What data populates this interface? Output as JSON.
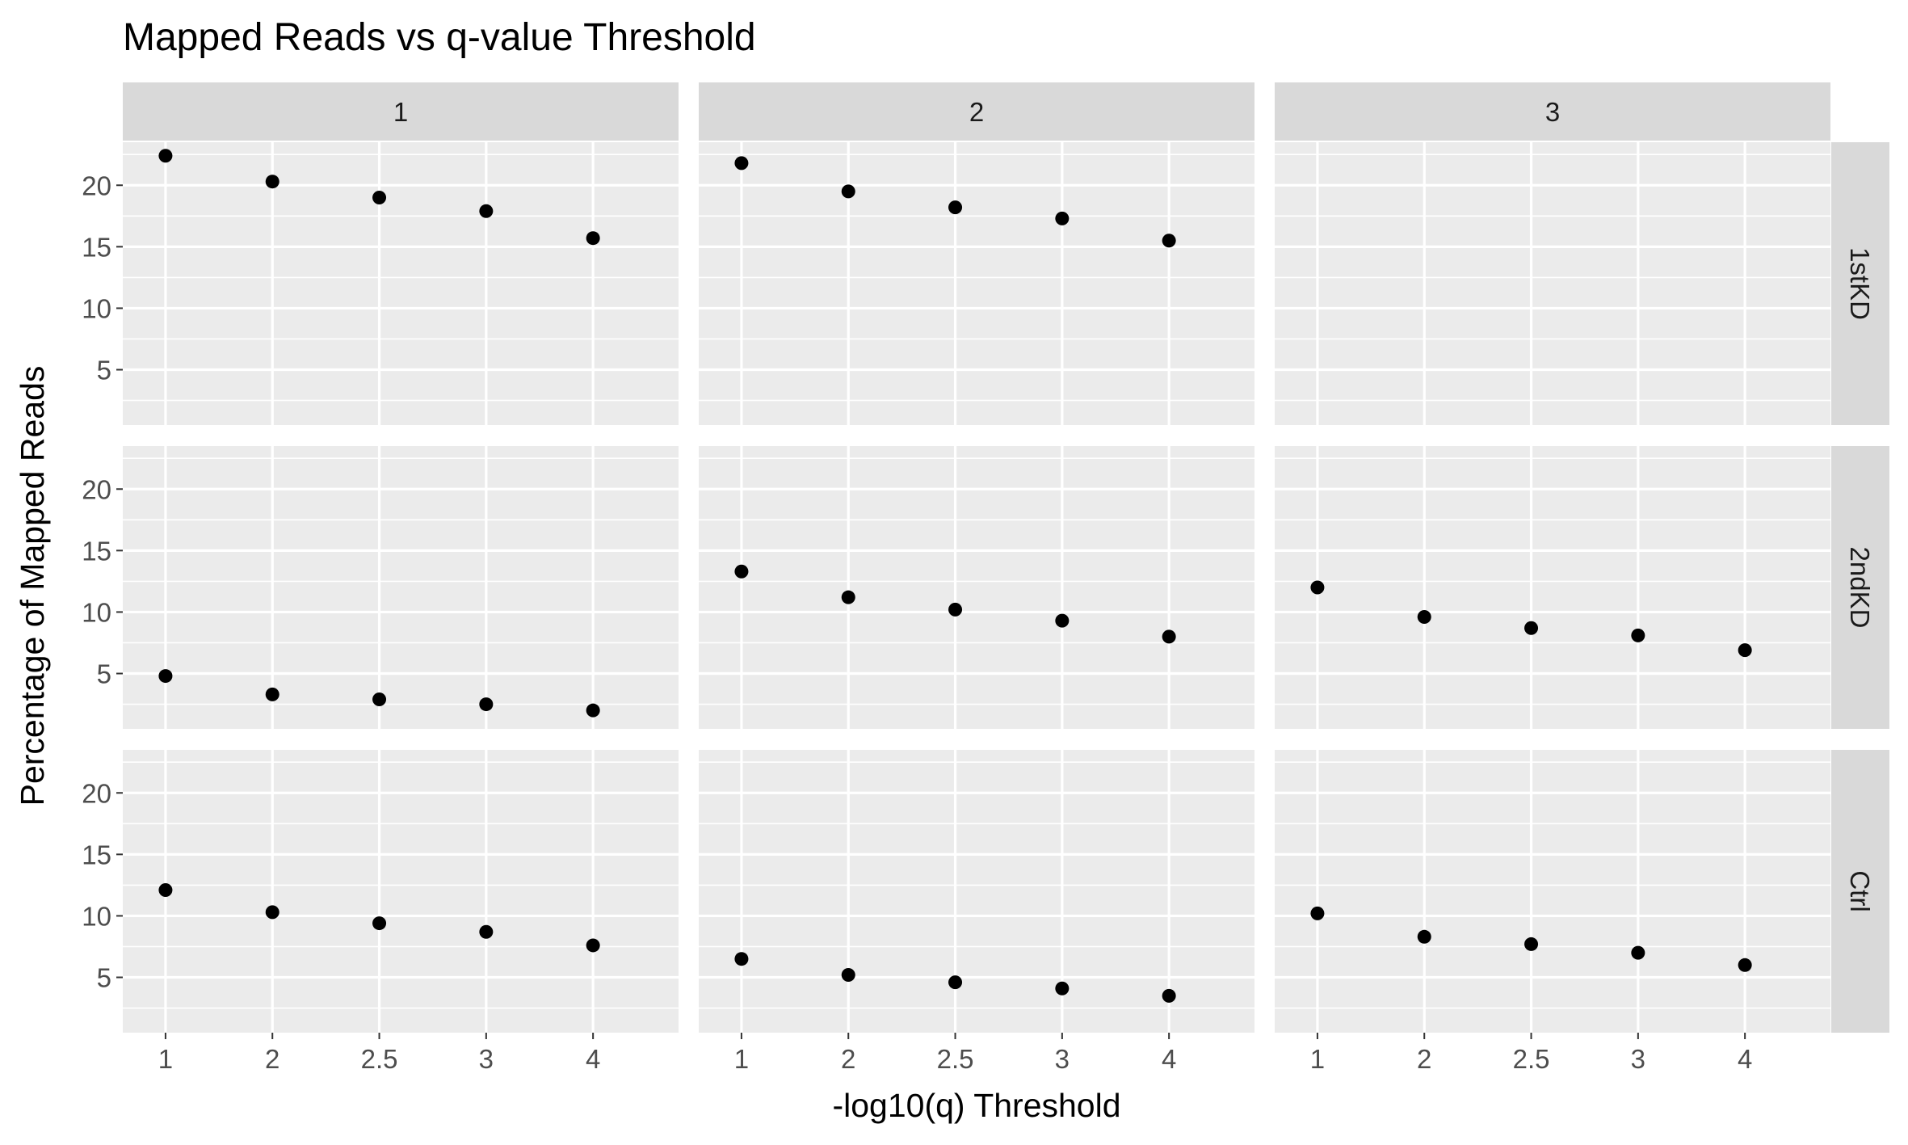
{
  "chart_data": {
    "type": "scatter",
    "title": "Mapped Reads vs q-value Threshold",
    "xlabel": "-log10(q) Threshold",
    "ylabel": "Percentage of Mapped Reads",
    "x_categories": [
      "1",
      "2",
      "2.5",
      "3",
      "4"
    ],
    "y_ticks": [
      "5",
      "10",
      "15",
      "20"
    ],
    "ylim": [
      0.5,
      23.5
    ],
    "grid": true,
    "facet_columns": [
      "1",
      "2",
      "3"
    ],
    "facet_rows": [
      "1stKD",
      "2ndKD",
      "Ctrl"
    ],
    "panels": [
      {
        "row": "1stKD",
        "col": "1",
        "values": [
          22.4,
          20.3,
          19.0,
          17.9,
          15.7
        ]
      },
      {
        "row": "1stKD",
        "col": "2",
        "values": [
          21.8,
          19.5,
          18.2,
          17.3,
          15.5
        ]
      },
      {
        "row": "1stKD",
        "col": "3",
        "values": []
      },
      {
        "row": "2ndKD",
        "col": "1",
        "values": [
          4.8,
          3.3,
          2.9,
          2.5,
          2.0
        ]
      },
      {
        "row": "2ndKD",
        "col": "2",
        "values": [
          13.3,
          11.2,
          10.2,
          9.3,
          8.0
        ]
      },
      {
        "row": "2ndKD",
        "col": "3",
        "values": [
          12.0,
          9.6,
          8.7,
          8.1,
          6.9
        ]
      },
      {
        "row": "Ctrl",
        "col": "1",
        "values": [
          12.1,
          10.3,
          9.4,
          8.7,
          7.6
        ]
      },
      {
        "row": "Ctrl",
        "col": "2",
        "values": [
          6.5,
          5.2,
          4.6,
          4.1,
          3.5
        ]
      },
      {
        "row": "Ctrl",
        "col": "3",
        "values": [
          10.2,
          8.3,
          7.7,
          7.0,
          6.0
        ]
      }
    ],
    "colors": {
      "panel_background": "#ebebeb",
      "strip_background": "#d9d9d9",
      "gridline": "#ffffff",
      "point": "#000000"
    }
  }
}
